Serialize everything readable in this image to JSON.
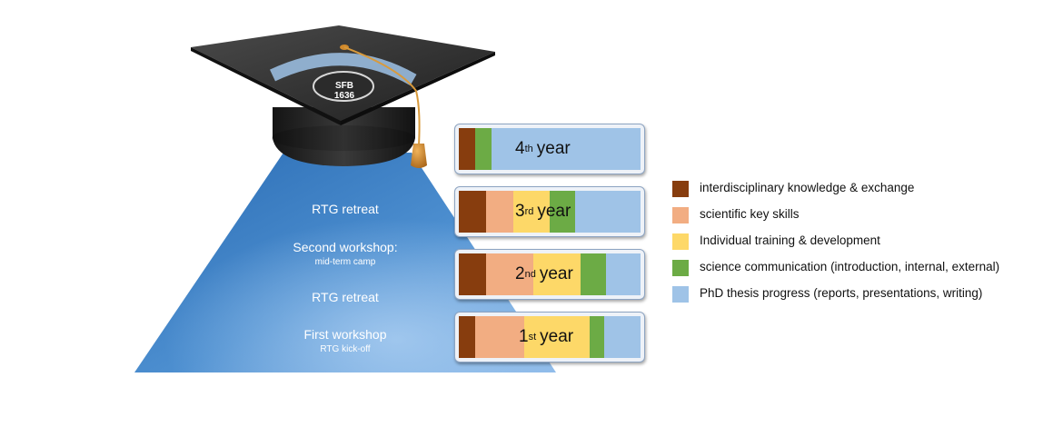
{
  "cap": {
    "emblem_line1": "SFB",
    "emblem_line2": "1636"
  },
  "pyramid": {
    "milestones": [
      {
        "title": "RTG retreat",
        "subtitle": ""
      },
      {
        "title": "Second workshop:",
        "subtitle": "mid-term camp"
      },
      {
        "title": "RTG retreat",
        "subtitle": ""
      },
      {
        "title": "First workshop",
        "subtitle": "RTG kick-off"
      }
    ]
  },
  "years": [
    {
      "number": "4",
      "suffix": "th",
      "word": "year",
      "segments": [
        {
          "category": "interdisciplinary",
          "share": 0.09
        },
        {
          "category": "communication",
          "share": 0.09
        },
        {
          "category": "thesis",
          "share": 0.82
        }
      ]
    },
    {
      "number": "3",
      "suffix": "rd",
      "word": "year",
      "segments": [
        {
          "category": "interdisciplinary",
          "share": 0.15
        },
        {
          "category": "key_skills",
          "share": 0.15
        },
        {
          "category": "training",
          "share": 0.2
        },
        {
          "category": "communication",
          "share": 0.14
        },
        {
          "category": "thesis",
          "share": 0.36
        }
      ]
    },
    {
      "number": "2",
      "suffix": "nd",
      "word": "year",
      "segments": [
        {
          "category": "interdisciplinary",
          "share": 0.15
        },
        {
          "category": "key_skills",
          "share": 0.26
        },
        {
          "category": "training",
          "share": 0.26
        },
        {
          "category": "communication",
          "share": 0.14
        },
        {
          "category": "thesis",
          "share": 0.19
        }
      ]
    },
    {
      "number": "1",
      "suffix": "st",
      "word": "year",
      "segments": [
        {
          "category": "interdisciplinary",
          "share": 0.09
        },
        {
          "category": "key_skills",
          "share": 0.27
        },
        {
          "category": "training",
          "share": 0.36
        },
        {
          "category": "communication",
          "share": 0.08
        },
        {
          "category": "thesis",
          "share": 0.2
        }
      ]
    }
  ],
  "legend": [
    {
      "key": "interdisciplinary",
      "label": "interdisciplinary knowledge & exchange",
      "color": "#873d0e"
    },
    {
      "key": "key_skills",
      "label": "scientific key skills",
      "color": "#f2ad82"
    },
    {
      "key": "training",
      "label": "Individual training & development",
      "color": "#fdd868"
    },
    {
      "key": "communication",
      "label": "science communication (introduction, internal, external)",
      "color": "#6cab45"
    },
    {
      "key": "thesis",
      "label": "PhD thesis progress (reports, presentations, writing)",
      "color": "#9fc3e7"
    }
  ]
}
